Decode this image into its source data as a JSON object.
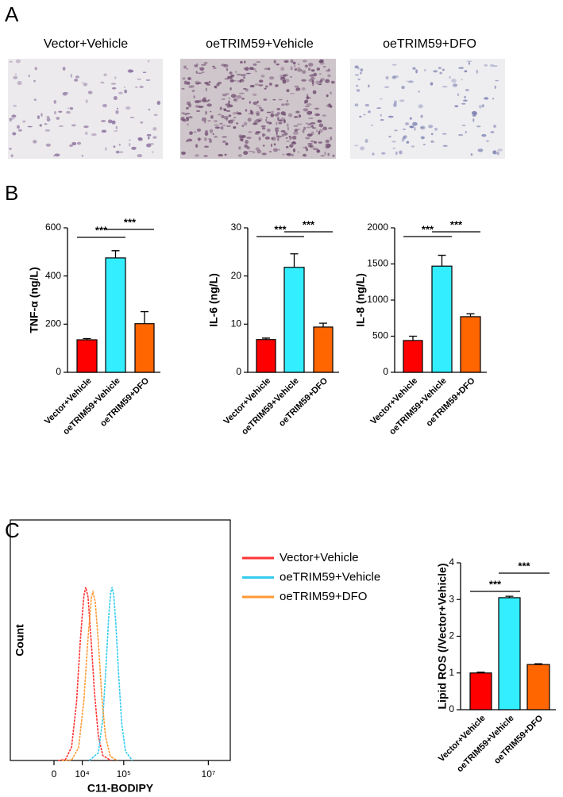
{
  "panels": [
    "A",
    "B",
    "C"
  ],
  "images": [
    {
      "title": "Vector+Vehicle"
    },
    {
      "title": "oeTRIM59+Vehicle"
    },
    {
      "title": "oeTRIM59+DFO"
    }
  ],
  "chart_data": [
    {
      "type": "bar",
      "y_label": "TNF-α (ng/L)",
      "categories": [
        "Vector+Vehicle",
        "oeTRIM59+Vehicle",
        "oeTRIM59+DFO"
      ],
      "values": [
        135,
        475,
        202
      ],
      "errors": [
        5,
        30,
        50
      ],
      "colors": [
        "#ff0000",
        "#33eeff",
        "#ff6600"
      ],
      "ylim": [
        0,
        600
      ],
      "yticks": [
        0,
        200,
        400,
        600
      ],
      "significance": [
        {
          "bars": [
            0,
            1
          ],
          "label": "***"
        },
        {
          "bars": [
            1,
            2
          ],
          "label": "***"
        }
      ]
    },
    {
      "type": "bar",
      "y_label": "IL-6 (ng/L)",
      "categories": [
        "Vector+Vehicle",
        "oeTRIM59+Vehicle",
        "oeTRIM59+DFO"
      ],
      "values": [
        6.8,
        21.8,
        9.4
      ],
      "errors": [
        0.3,
        2.8,
        0.8
      ],
      "colors": [
        "#ff0000",
        "#33eeff",
        "#ff6600"
      ],
      "ylim": [
        0,
        30
      ],
      "yticks": [
        0,
        10,
        20,
        30
      ],
      "significance": [
        {
          "bars": [
            0,
            1
          ],
          "label": "***"
        },
        {
          "bars": [
            1,
            2
          ],
          "label": "***"
        }
      ]
    },
    {
      "type": "bar",
      "y_label": "IL-8 (ng/L)",
      "categories": [
        "Vector+Vehicle",
        "oeTRIM59+Vehicle",
        "oeTRIM59+DFO"
      ],
      "values": [
        440,
        1470,
        770
      ],
      "errors": [
        60,
        150,
        40
      ],
      "colors": [
        "#ff0000",
        "#33eeff",
        "#ff6600"
      ],
      "ylim": [
        0,
        2000
      ],
      "yticks": [
        0,
        500,
        1000,
        1500,
        2000
      ],
      "significance": [
        {
          "bars": [
            0,
            1
          ],
          "label": "***"
        },
        {
          "bars": [
            1,
            2
          ],
          "label": "***"
        }
      ]
    },
    {
      "type": "line",
      "x_label": "C11-BODIPY",
      "y_label": "Count",
      "xscale": "biexponential",
      "xlim": [
        -24000,
        33000000
      ],
      "xticks": [
        0,
        {
          "value": 10000,
          "label": "10⁴"
        },
        {
          "value": 100000,
          "label": "10⁵"
        },
        {
          "value": 10000000,
          "label": "10⁷"
        }
      ],
      "ylim": [
        0,
        100
      ],
      "legend": "right",
      "series": [
        {
          "name": "Vector+Vehicle",
          "color": "#ff3333",
          "x": [
            1000,
            3000,
            5000,
            7000,
            9000,
            11000,
            12300,
            14000,
            17000,
            20000,
            25000,
            32000,
            50000
          ],
          "values": [
            0,
            0.4,
            5.6,
            24,
            51,
            68.5,
            72,
            68,
            48,
            29,
            10,
            2,
            0
          ]
        },
        {
          "name": "oeTRIM59+Vehicle",
          "color": "#33ccee",
          "x": [
            15000,
            25000,
            32000,
            38000,
            44000,
            49000,
            53000,
            58000,
            65000,
            75000,
            90000,
            110000,
            160000
          ],
          "values": [
            0,
            3.2,
            17.6,
            39,
            59.6,
            69.5,
            72,
            68.8,
            57,
            37,
            15,
            3.8,
            0
          ]
        },
        {
          "name": "oeTRIM59+DFO",
          "color": "#ff9933",
          "x": [
            2000,
            5000,
            8000,
            11000,
            14000,
            17000,
            18500,
            21000,
            25000,
            30000,
            37000,
            48000,
            70000
          ],
          "values": [
            0,
            0.2,
            5.3,
            25,
            51,
            68,
            70,
            66,
            49,
            27,
            10,
            1.7,
            0
          ]
        }
      ]
    },
    {
      "type": "bar",
      "y_label": "Lipid ROS (/Vector+Vehicle)",
      "categories": [
        "Vector+Vehicle",
        "oeTRIM59+Vehicle",
        "oeTRIM59+DFO"
      ],
      "values": [
        1.0,
        3.05,
        1.23
      ],
      "errors": [
        0.02,
        0.04,
        0.02
      ],
      "colors": [
        "#ff0000",
        "#33eeff",
        "#ff6600"
      ],
      "ylim": [
        0,
        4
      ],
      "yticks": [
        0,
        1,
        2,
        3,
        4
      ],
      "significance": [
        {
          "bars": [
            0,
            1
          ],
          "label": "***"
        },
        {
          "bars": [
            1,
            2
          ],
          "label": "***"
        }
      ]
    }
  ]
}
